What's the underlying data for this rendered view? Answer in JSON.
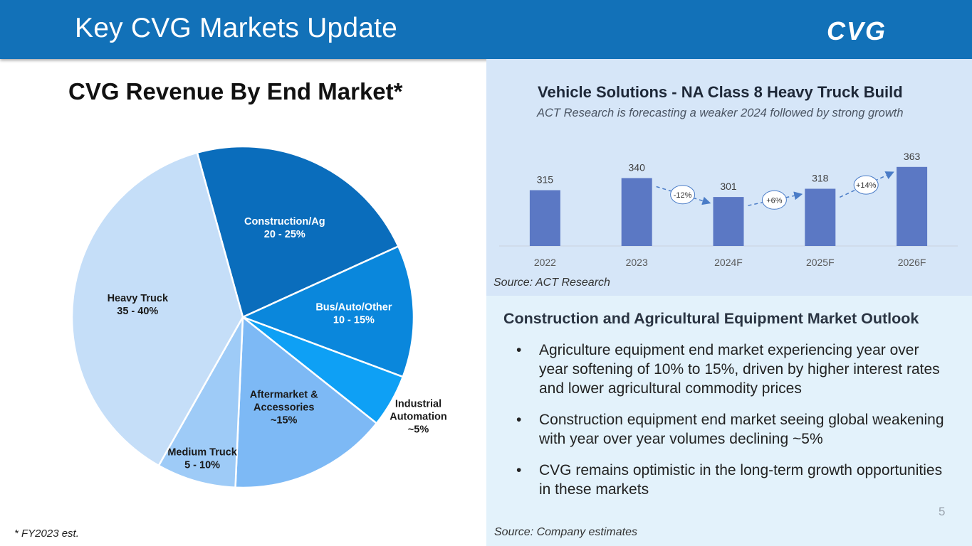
{
  "header": {
    "title": "Key CVG Markets Update",
    "logo_text": "CVG"
  },
  "pie": {
    "title": "CVG Revenue By End Market*",
    "footnote": "* FY2023 est.",
    "slices": [
      {
        "name": "Construction/Ag",
        "range": "20 - 25%",
        "value": 22.5,
        "color": "#0a6dbc",
        "text_color": "#ffffff"
      },
      {
        "name": "Bus/Auto/Other",
        "range": "10 - 15%",
        "value": 12.5,
        "color": "#0a87dc",
        "text_color": "#ffffff"
      },
      {
        "name": "Industrial Automation",
        "range": "~5%",
        "value": 5.0,
        "color": "#0ea0f5",
        "text_color": "#1a1a1a"
      },
      {
        "name": "Aftermarket & Accessories",
        "range": "~15%",
        "value": 15.0,
        "color": "#7db9f5",
        "text_color": "#1a1a1a"
      },
      {
        "name": "Medium Truck",
        "range": "5 - 10%",
        "value": 7.5,
        "color": "#9ecbf7",
        "text_color": "#1a1a1a"
      },
      {
        "name": "Heavy Truck",
        "range": "35 - 40%",
        "value": 37.5,
        "color": "#c5def8",
        "text_color": "#1a1a1a"
      }
    ]
  },
  "truck_build": {
    "title": "Vehicle Solutions - NA Class 8 Heavy Truck Build",
    "subtitle": "ACT Research  is forecasting a weaker 2024 followed by strong growth",
    "source": "Source: ACT Research"
  },
  "chart_data": {
    "type": "bar",
    "title": "Vehicle Solutions - NA Class 8 Heavy Truck Build",
    "categories": [
      "2022",
      "2023",
      "2024F",
      "2025F",
      "2026F"
    ],
    "values": [
      315,
      340,
      301,
      318,
      363
    ],
    "value_labels": [
      "315",
      "340",
      "301",
      "318",
      "363"
    ],
    "ylim": [
      200,
      370
    ],
    "changes": [
      "-12%",
      "+6%",
      "+14%"
    ],
    "bar_color": "#5b78c4",
    "xlabel": "",
    "ylabel": ""
  },
  "outlook": {
    "title": "Construction and Agricultural Equipment Market Outlook",
    "bullet_symbol": "•",
    "bullets": [
      "Agriculture equipment end market experiencing year over year softening of 10% to 15%, driven by higher interest rates and lower agricultural commodity prices",
      "Construction equipment end market seeing global weakening with year over year volumes declining ~5%",
      "CVG remains optimistic in the long-term growth opportunities in these markets"
    ],
    "source": "Source: Company estimates"
  },
  "page_number": "5"
}
